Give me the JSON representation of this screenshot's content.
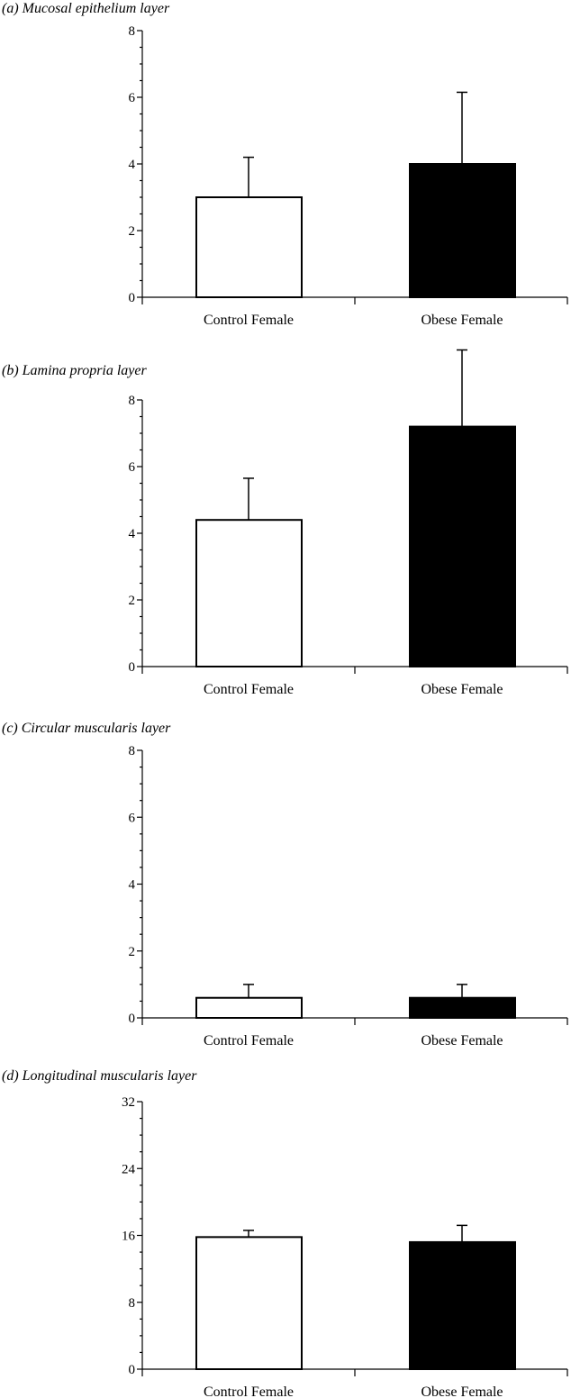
{
  "chart_data": [
    {
      "type": "bar",
      "title": "(a) Mucosal epithelium layer",
      "categories": [
        "Control Female",
        "Obese Female"
      ],
      "values": [
        3.0,
        4.0
      ],
      "error": [
        1.2,
        2.15
      ],
      "ylim": [
        0,
        8
      ],
      "yticks": [
        "0",
        "2",
        "4",
        "6",
        "8"
      ],
      "minor_ticks_per_major": 3,
      "colors": [
        "#ffffff",
        "#000000"
      ],
      "grid": false
    },
    {
      "type": "bar",
      "title": "(b) Lamina propria layer",
      "categories": [
        "Control Female",
        "Obese Female"
      ],
      "values": [
        4.4,
        7.2
      ],
      "error": [
        1.25,
        2.3
      ],
      "ylim": [
        0,
        8
      ],
      "yticks": [
        "0",
        "2",
        "4",
        "6",
        "8"
      ],
      "minor_ticks_per_major": 3,
      "colors": [
        "#ffffff",
        "#000000"
      ],
      "grid": false
    },
    {
      "type": "bar",
      "title": "(c) Circular muscularis layer",
      "categories": [
        "Control Female",
        "Obese Female"
      ],
      "values": [
        0.6,
        0.6
      ],
      "error": [
        0.4,
        0.4
      ],
      "ylim": [
        0,
        8
      ],
      "yticks": [
        "0",
        "2",
        "4",
        "6",
        "8"
      ],
      "minor_ticks_per_major": 3,
      "colors": [
        "#ffffff",
        "#000000"
      ],
      "grid": false
    },
    {
      "type": "bar",
      "title": "(d) Longitudinal muscularis layer",
      "categories": [
        "Control Female",
        "Obese Female"
      ],
      "values": [
        15.8,
        15.2
      ],
      "error": [
        0.8,
        2.0
      ],
      "ylim": [
        0,
        32
      ],
      "yticks": [
        "0",
        "8",
        "16",
        "24",
        "32"
      ],
      "minor_ticks_per_major": 3,
      "colors": [
        "#ffffff",
        "#000000"
      ],
      "grid": false
    }
  ]
}
